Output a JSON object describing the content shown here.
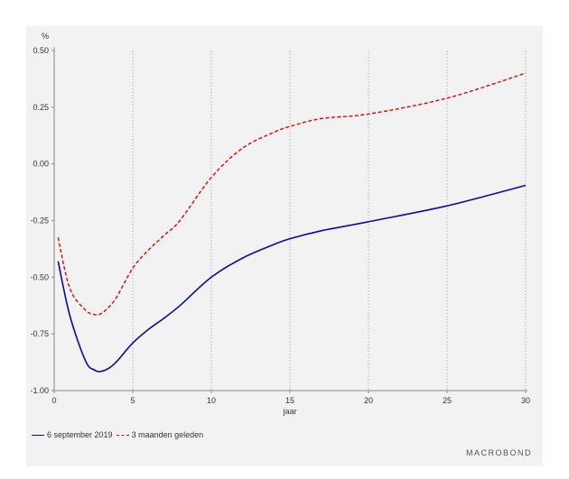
{
  "chart_data": {
    "type": "line",
    "ylabel": "%",
    "xlabel": "jaar",
    "xlim": [
      0,
      30
    ],
    "ylim": [
      -1.0,
      0.5
    ],
    "xticks": [
      "0",
      "5",
      "10",
      "15",
      "20",
      "25",
      "30"
    ],
    "yticks": [
      "0.50",
      "0.25",
      "0.00",
      "-0.25",
      "-0.50",
      "-0.75",
      "-1.00"
    ],
    "grid": "vertical dotted",
    "legend_position": "bottom-left",
    "series": [
      {
        "name": "6 september 2019",
        "color": "#0a0aa6",
        "dash": "solid",
        "x": [
          0.25,
          1,
          2,
          2.6,
          3,
          3.5,
          4,
          5,
          6,
          7,
          8,
          10,
          12,
          14,
          15,
          17,
          20,
          25,
          30
        ],
        "values": [
          -0.43,
          -0.67,
          -0.87,
          -0.91,
          -0.915,
          -0.9,
          -0.87,
          -0.79,
          -0.73,
          -0.68,
          -0.625,
          -0.5,
          -0.415,
          -0.355,
          -0.33,
          -0.295,
          -0.255,
          -0.185,
          -0.095
        ]
      },
      {
        "name": "3 maanden geleden",
        "color": "#e60000",
        "dash": "dashed",
        "x": [
          0.25,
          1,
          2,
          2.6,
          3,
          3.5,
          4,
          5,
          6,
          7,
          8,
          10,
          12,
          14,
          15,
          17,
          20,
          25,
          30
        ],
        "values": [
          -0.325,
          -0.55,
          -0.645,
          -0.665,
          -0.66,
          -0.63,
          -0.585,
          -0.46,
          -0.38,
          -0.315,
          -0.25,
          -0.06,
          0.07,
          0.14,
          0.165,
          0.2,
          0.22,
          0.29,
          0.4
        ]
      }
    ]
  },
  "brand": "MACROBOND"
}
